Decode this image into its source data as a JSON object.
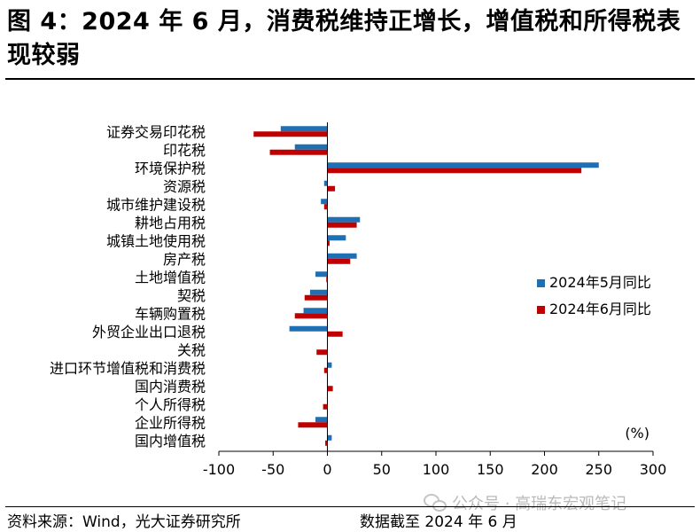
{
  "title": "图 4：2024 年 6 月，消费税维持正增长，增值税和所得税表现较弱",
  "source": "资料来源：Wind，光大证券研究所",
  "cutoff": "数据截至 2024 年 6 月",
  "watermark": "公众号 · 高瑞东宏观笔记",
  "chart_data": {
    "type": "bar",
    "orientation": "horizontal",
    "title": "",
    "unit_label": "(%)",
    "xlim": [
      -100,
      300
    ],
    "xticks": [
      -100,
      -50,
      0,
      50,
      100,
      150,
      200,
      250,
      300
    ],
    "tick_labels": [
      "-100",
      "-50",
      "0",
      "50",
      "100",
      "150",
      "200",
      "250",
      "300"
    ],
    "grid": false,
    "legend_position": "right-middle",
    "categories": [
      "证券交易印花税",
      "印花税",
      "环境保护税",
      "资源税",
      "城市维护建设税",
      "耕地占用税",
      "城镇土地使用税",
      "房产税",
      "土地增值税",
      "契税",
      "车辆购置税",
      "外贸企业出口退税",
      "关税",
      "进口环节增值税和消费税",
      "国内消费税",
      "个人所得税",
      "企业所得税",
      "国内增值税"
    ],
    "series": [
      {
        "name": "2024年5月同比",
        "color": "#1f6fb5",
        "values": [
          -43,
          -30,
          250,
          -3,
          -6,
          30,
          17,
          27,
          -11,
          -16,
          -22,
          -35,
          0,
          4,
          0,
          0,
          -11,
          4
        ]
      },
      {
        "name": "2024年6月同比",
        "color": "#c00000",
        "values": [
          -68,
          -53,
          234,
          7,
          -3,
          27,
          2,
          21,
          -1,
          -21,
          -30,
          14,
          -10,
          -3,
          5,
          -4,
          -27,
          -2
        ]
      }
    ]
  }
}
